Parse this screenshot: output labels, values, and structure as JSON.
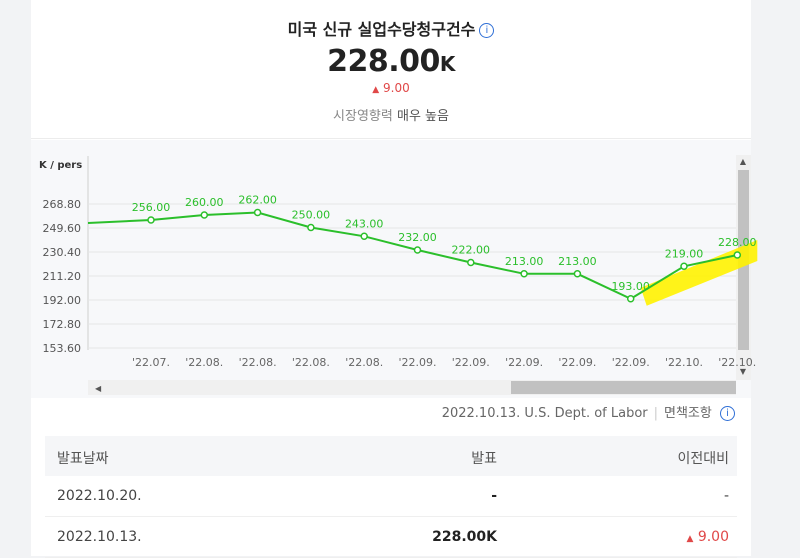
{
  "header": {
    "title": "미국 신규 실업수당청구건수",
    "info_icon": "info-icon",
    "value": "228.00",
    "value_unit": "K",
    "delta_arrow": "▲",
    "delta": "9.00",
    "impact_label": "시장영향력",
    "impact_value": "매우 높음"
  },
  "chart_data": {
    "type": "line",
    "ylabel": "K / pers",
    "y_ticks": [
      "268.80",
      "249.60",
      "230.40",
      "211.20",
      "192.00",
      "172.80",
      "153.60"
    ],
    "ylim": [
      153.6,
      268.8
    ],
    "categories": [
      "'22.07.",
      "'22.08.",
      "'22.08.",
      "'22.08.",
      "'22.08.",
      "'22.09.",
      "'22.09.",
      "'22.09.",
      "'22.09.",
      "'22.09.",
      "'22.10.",
      "'22.10."
    ],
    "values": [
      256.0,
      260.0,
      262.0,
      250.0,
      243.0,
      232.0,
      222.0,
      213.0,
      213.0,
      193.0,
      219.0,
      228.0
    ],
    "labels": [
      "256.00",
      "260.00",
      "262.00",
      "250.00",
      "243.00",
      "232.00",
      "222.00",
      "213.00",
      "213.00",
      "193.00",
      "219.00",
      "228.00"
    ],
    "line_color": "#2bbf2b",
    "highlight_color": "#fff200",
    "grid": true
  },
  "source": {
    "text": "2022.10.13. U.S. Dept. of Labor",
    "disclaimer": "면책조항"
  },
  "table": {
    "headers": [
      "발표날짜",
      "발표",
      "이전대비"
    ],
    "rows": [
      {
        "date": "2022.10.20.",
        "value": "-",
        "change": "-",
        "arrow": ""
      },
      {
        "date": "2022.10.13.",
        "value": "228.00K",
        "change": "9.00",
        "arrow": "▲"
      }
    ]
  }
}
